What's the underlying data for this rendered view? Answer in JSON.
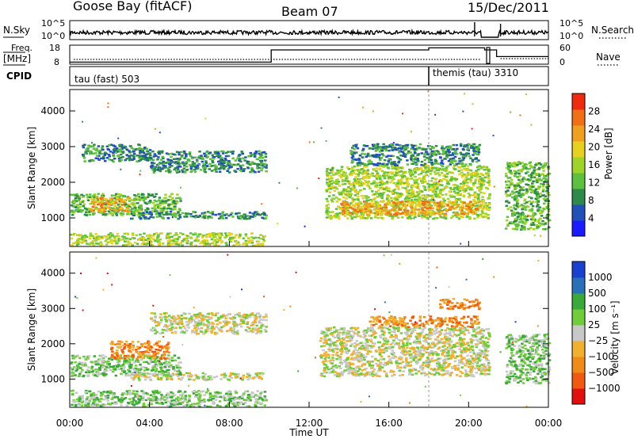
{
  "header": {
    "title": "Goose Bay (fitACF)",
    "beam": "Beam 07",
    "date": "15/Dec/2011"
  },
  "noise_panel": {
    "left_label": "N.Sky",
    "right_label": "N.Search",
    "left_ticks": [
      "10^5",
      "10^0"
    ],
    "right_ticks": [
      "10^5",
      "10^0"
    ]
  },
  "freq_panel": {
    "left_label_1": "Freq.",
    "left_label_2": "[MHz]",
    "right_label": "Nave",
    "left_ticks": [
      "18",
      "8"
    ],
    "right_ticks": [
      "60",
      "0"
    ],
    "freq_mhz": {
      "times_h": [
        0,
        10.1,
        10.1,
        18.0,
        18.0,
        20.8,
        20.8,
        21.4,
        21.4,
        24
      ],
      "values": [
        9.1,
        9.1,
        15.5,
        15.5,
        16.6,
        16.6,
        15.5,
        15.5,
        12.0,
        12.0
      ]
    }
  },
  "cpid_panel": {
    "label": "CPID",
    "mode_1": "tau (fast) 503",
    "mode_2": "themis (tau) 3310",
    "mode_2_start_h": 18.0
  },
  "colors": {
    "power": [
      "#1b1bff",
      "#2050b8",
      "#2e8a4a",
      "#5fbf3e",
      "#9fd32a",
      "#e6d020",
      "#f0a020",
      "#f07018",
      "#f02a10"
    ],
    "velocity": [
      "#e01010",
      "#f05a10",
      "#f08a18",
      "#f0b030",
      "#c8c8c8",
      "#70cc3a",
      "#3aa83a",
      "#2a70b8",
      "#1a40d0"
    ]
  },
  "chart_data": [
    {
      "type": "heatmap",
      "panel": "power",
      "ylabel": "Slant Range [km]",
      "xlabel": "",
      "xlim_h": [
        0,
        24
      ],
      "ylim_km": [
        200,
        4600
      ],
      "yticks": [
        1000,
        2000,
        3000,
        4000
      ],
      "colorbar": {
        "label": "Power [dB]",
        "ticks": [
          4,
          8,
          12,
          16,
          20,
          24,
          28
        ],
        "range": [
          0,
          32
        ]
      },
      "regions": [
        {
          "t0": 0.0,
          "t1": 9.8,
          "r0": 250,
          "r1": 600,
          "value": 16
        },
        {
          "t0": 0.0,
          "t1": 5.5,
          "r0": 1100,
          "r1": 1700,
          "value": 14
        },
        {
          "t0": 1.0,
          "t1": 3.0,
          "r0": 1200,
          "r1": 1600,
          "value": 22
        },
        {
          "t0": 3.0,
          "t1": 9.8,
          "r0": 1000,
          "r1": 1200,
          "value": 10
        },
        {
          "t0": 4.0,
          "t1": 9.8,
          "r0": 2300,
          "r1": 2900,
          "value": 10
        },
        {
          "t0": 0.5,
          "t1": 4.0,
          "r0": 2600,
          "r1": 3100,
          "value": 8
        },
        {
          "t0": 12.8,
          "t1": 21.0,
          "r0": 1000,
          "r1": 2500,
          "value": 16
        },
        {
          "t0": 13.5,
          "t1": 20.5,
          "r0": 1100,
          "r1": 1500,
          "value": 24
        },
        {
          "t0": 14.0,
          "t1": 20.5,
          "r0": 2500,
          "r1": 3100,
          "value": 8
        },
        {
          "t0": 21.8,
          "t1": 24.0,
          "r0": 700,
          "r1": 2600,
          "value": 12
        }
      ]
    },
    {
      "type": "heatmap",
      "panel": "velocity",
      "ylabel": "Slant Range [km]",
      "xlabel": "Time UT",
      "xlim_h": [
        0,
        24
      ],
      "xticks": [
        "00:00",
        "04:00",
        "08:00",
        "12:00",
        "16:00",
        "20:00",
        "00:00"
      ],
      "ylim_km": [
        200,
        4600
      ],
      "yticks": [
        1000,
        2000,
        3000,
        4000
      ],
      "colorbar": {
        "label": "Velocity [m s⁻¹]",
        "ticks": [
          "1000",
          "500",
          "100",
          "25",
          "−25",
          "−100",
          "−500",
          "−1000"
        ]
      },
      "regions": [
        {
          "t0": 0.0,
          "t1": 9.8,
          "r0": 250,
          "r1": 700,
          "value": 50
        },
        {
          "t0": 0.0,
          "t1": 5.5,
          "r0": 1100,
          "r1": 1700,
          "value": 90
        },
        {
          "t0": 2.0,
          "t1": 5.0,
          "r0": 1600,
          "r1": 2100,
          "value": -200
        },
        {
          "t0": 4.0,
          "t1": 9.8,
          "r0": 2300,
          "r1": 2900,
          "value": 0
        },
        {
          "t0": 3.0,
          "t1": 9.8,
          "r0": 1000,
          "r1": 1200,
          "value": 0
        },
        {
          "t0": 12.5,
          "t1": 21.0,
          "r0": 1100,
          "r1": 2500,
          "value": 0
        },
        {
          "t0": 15.0,
          "t1": 20.5,
          "r0": 2500,
          "r1": 2800,
          "value": -150
        },
        {
          "t0": 18.5,
          "t1": 20.5,
          "r0": 3000,
          "r1": 3300,
          "value": -300
        },
        {
          "t0": 21.8,
          "t1": 24.0,
          "r0": 900,
          "r1": 2300,
          "value": 80
        }
      ]
    }
  ]
}
